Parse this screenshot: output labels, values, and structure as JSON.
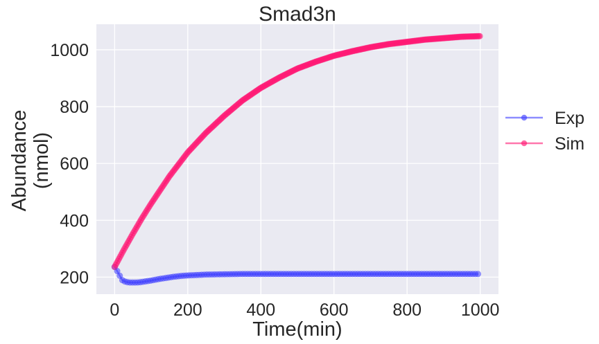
{
  "chart_data": {
    "type": "line",
    "title": "Smad3n",
    "xlabel": "Time(min)",
    "ylabel": [
      "Abundance",
      "(nmol)"
    ],
    "xlim": [
      -50,
      1050
    ],
    "ylim": [
      140,
      1090
    ],
    "xticks": [
      0,
      200,
      400,
      600,
      800,
      1000
    ],
    "yticks": [
      200,
      400,
      600,
      800,
      1000
    ],
    "grid": true,
    "legend_position": "right-outside",
    "series": [
      {
        "name": "Exp",
        "color": "#4040ff",
        "x": [
          0,
          10,
          20,
          30,
          40,
          50,
          60,
          70,
          80,
          90,
          100,
          120,
          140,
          160,
          180,
          200,
          220,
          250,
          300,
          350,
          400,
          450,
          500,
          550,
          600,
          650,
          700,
          750,
          800,
          850,
          900,
          950,
          1000
        ],
        "y": [
          236,
          215,
          190,
          183,
          181,
          181,
          181,
          182,
          184,
          186,
          188,
          193,
          197,
          201,
          204,
          206,
          207,
          209,
          210,
          211,
          211,
          211,
          211,
          211,
          211,
          211,
          211,
          211,
          211,
          211,
          211,
          211,
          211
        ]
      },
      {
        "name": "Sim",
        "color": "#ff1a75",
        "x": [
          0,
          25,
          50,
          75,
          100,
          150,
          200,
          250,
          300,
          350,
          400,
          450,
          500,
          550,
          600,
          650,
          700,
          750,
          800,
          850,
          900,
          950,
          1000
        ],
        "y": [
          236,
          296,
          353,
          408,
          459,
          555,
          639,
          708,
          768,
          822,
          866,
          902,
          934,
          958,
          979,
          995,
          1009,
          1020,
          1028,
          1036,
          1041,
          1046,
          1048
        ]
      }
    ]
  }
}
